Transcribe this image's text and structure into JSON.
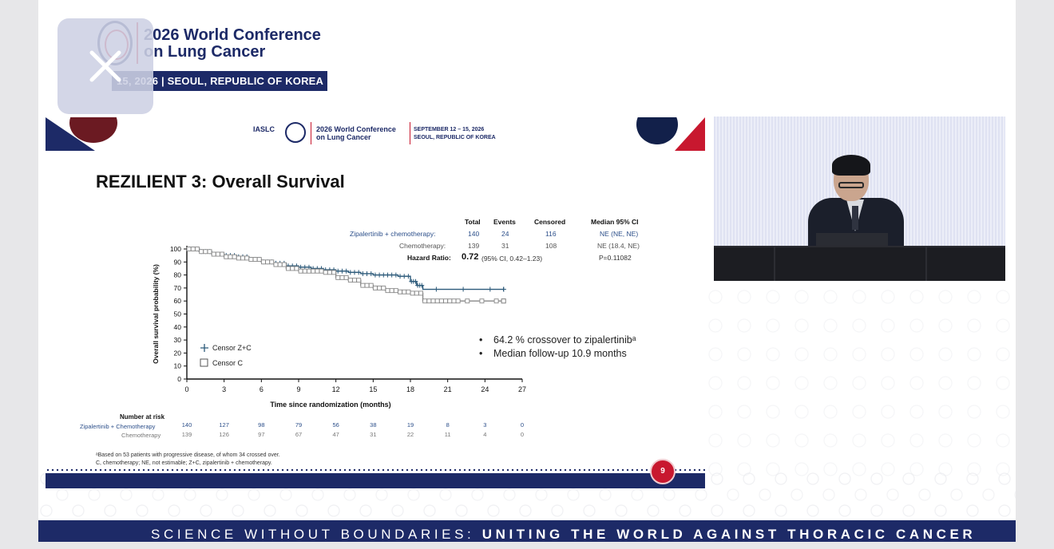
{
  "banner": {
    "title_line1": "2026 World Conference",
    "title_line2": "on Lung Cancer",
    "date_location": "15, 2026  |  SEOUL, REPUBLIC OF KOREA"
  },
  "slide": {
    "header_org": "IASLC",
    "header_conf_line1": "2026 World Conference",
    "header_conf_line2": "on Lung Cancer",
    "header_dates_line1": "SEPTEMBER 12 – 15, 2026",
    "header_dates_line2": "SEOUL, REPUBLIC OF KOREA",
    "title": "REZILIENT 3: Overall Survival",
    "stats": {
      "headers": [
        "Total",
        "Events",
        "Censored",
        "Median 95% CI"
      ],
      "rows": [
        {
          "label": "Zipalertinib + chemotherapy:",
          "total": "140",
          "events": "24",
          "censored": "116",
          "median": "NE (NE, NE)"
        },
        {
          "label": "Chemotherapy:",
          "total": "139",
          "events": "31",
          "censored": "108",
          "median": "NE (18.4, NE)"
        }
      ],
      "hr_label": "Hazard Ratio:",
      "hr_value": "0.72",
      "hr_ci": "(95% CI, 0.42–1.23)",
      "p_value": "P=0.11082"
    },
    "bullets": [
      "64.2 % crossover to zipalertinibᵃ",
      "Median follow-up 10.9 months"
    ],
    "number_at_risk": {
      "title": "Number at risk",
      "rows": [
        {
          "label": "Zipalertinib + Chemotherapy",
          "color": "#2c4f8a",
          "values": [
            "140",
            "127",
            "98",
            "79",
            "56",
            "38",
            "19",
            "8",
            "3",
            "0"
          ]
        },
        {
          "label": "Chemotherapy",
          "color": "#777777",
          "values": [
            "139",
            "126",
            "97",
            "67",
            "47",
            "31",
            "22",
            "11",
            "4",
            "0"
          ]
        }
      ]
    },
    "footnote_line1": "ᵃBased on 53 patients with progressive disease, of whom 34 crossed over.",
    "footnote_line2": "C, chemotherapy; NE, not estimable; Z+C, zipalertinib + chemotherapy.",
    "page_number": "9"
  },
  "chart_data": {
    "type": "line",
    "xlabel": "Time since randomization (months)",
    "ylabel": "Overall survival probability (%)",
    "xlim": [
      0,
      27
    ],
    "ylim": [
      0,
      100
    ],
    "x_ticks": [
      0,
      3,
      6,
      9,
      12,
      15,
      18,
      21,
      24,
      27
    ],
    "y_ticks": [
      0,
      10,
      20,
      30,
      40,
      50,
      60,
      70,
      80,
      90,
      100
    ],
    "legend": [
      {
        "marker": "+",
        "label": "Censor Z+C"
      },
      {
        "marker": "□",
        "label": "Censor C"
      }
    ],
    "legend_position": "bottom-left",
    "series": [
      {
        "name": "Censor Z+C",
        "color": "#2c5a7a",
        "x": [
          0,
          1,
          2,
          3,
          4,
          5,
          6,
          7,
          8,
          9,
          10,
          11,
          12,
          13,
          14,
          15,
          16,
          17,
          18,
          18.5,
          19,
          25.5
        ],
        "y": [
          100,
          98,
          96,
          95,
          94,
          92,
          90,
          89,
          87,
          86,
          85,
          84,
          83,
          82,
          81,
          80,
          80,
          79,
          75,
          72,
          69,
          69
        ]
      },
      {
        "name": "Censor C",
        "color": "#888888",
        "x": [
          0,
          1,
          2,
          3,
          4,
          5,
          6,
          7,
          8,
          9,
          10,
          11,
          12,
          13,
          14,
          15,
          16,
          17,
          18,
          19,
          20,
          21,
          22,
          25.5
        ],
        "y": [
          100,
          98,
          96,
          94,
          93,
          92,
          90,
          88,
          85,
          83,
          83,
          82,
          78,
          76,
          72,
          70,
          68,
          67,
          66,
          60,
          60,
          60,
          60,
          60
        ]
      }
    ]
  },
  "bottom_banner": {
    "text_light": "SCIENCE WITHOUT BOUNDARIES: ",
    "text_bold": "UNITING THE WORLD AGAINST THORACIC CANCER"
  },
  "close_button": {
    "icon": "close-icon"
  }
}
